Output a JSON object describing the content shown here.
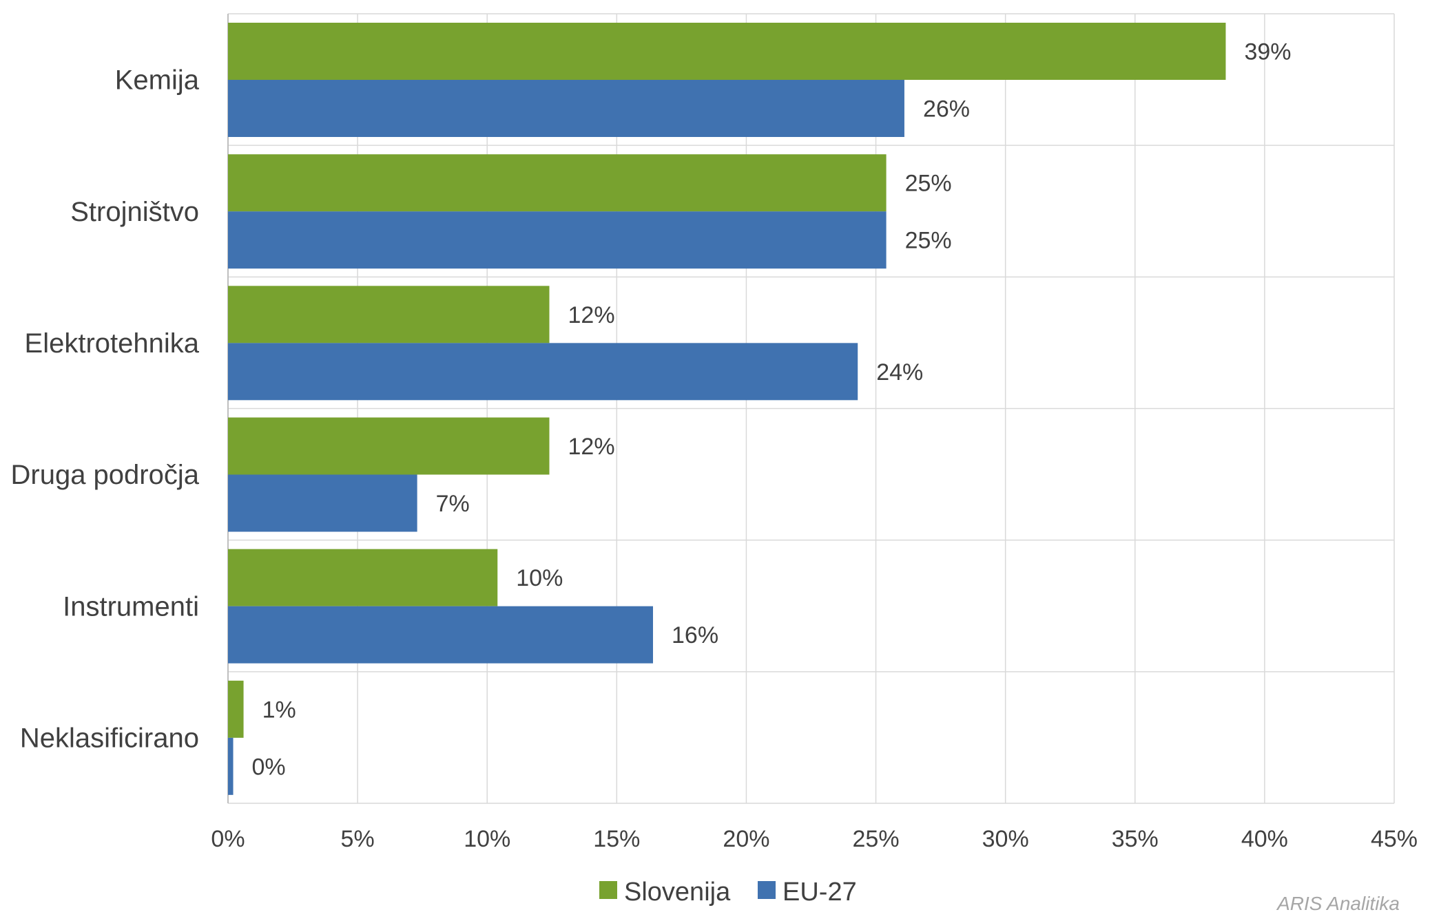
{
  "chart_data": {
    "type": "bar",
    "orientation": "horizontal",
    "categories": [
      "Kemija",
      "Strojništvo",
      "Elektrotehnika",
      "Druga področja",
      "Instrumenti",
      "Neklasificirano"
    ],
    "series": [
      {
        "name": "Slovenija",
        "color": "#78a22f",
        "values": [
          38.5,
          25.4,
          12.4,
          12.4,
          10.4,
          0.6
        ],
        "labels": [
          "39%",
          "25%",
          "12%",
          "12%",
          "10%",
          "1%"
        ]
      },
      {
        "name": "EU-27",
        "color": "#4072b0",
        "values": [
          26.1,
          25.4,
          24.3,
          7.3,
          16.4,
          0.2
        ],
        "labels": [
          "26%",
          "25%",
          "24%",
          "7%",
          "16%",
          "0%"
        ]
      }
    ],
    "xlim": [
      0,
      45
    ],
    "xticks": [
      0,
      5,
      10,
      15,
      20,
      25,
      30,
      35,
      40,
      45
    ],
    "xtick_labels": [
      "0%",
      "5%",
      "10%",
      "15%",
      "20%",
      "25%",
      "30%",
      "35%",
      "40%",
      "45%"
    ],
    "grid": true,
    "legend_position": "bottom"
  },
  "watermark": "ARIS Analitika"
}
